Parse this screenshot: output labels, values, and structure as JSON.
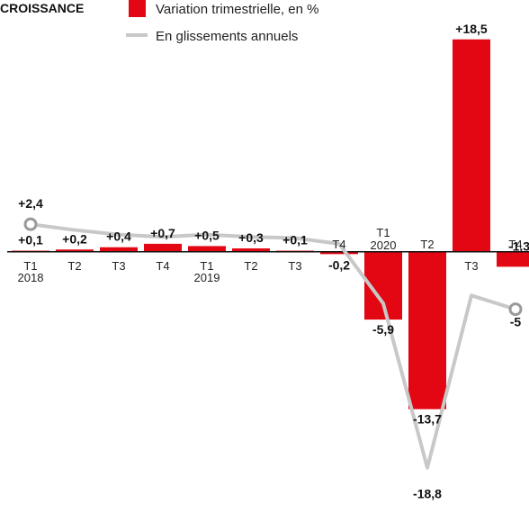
{
  "chart_data": {
    "type": "bar",
    "title": "CROISSANCE",
    "legend_position": "top",
    "series": [
      {
        "name": "Variation trimestrielle, en %",
        "type": "bar",
        "color": "#e30613",
        "values": [
          0.1,
          0.2,
          0.4,
          0.7,
          0.5,
          0.3,
          0.1,
          -0.2,
          -5.9,
          -13.7,
          18.5,
          -1.3
        ],
        "labels": [
          "+0,1",
          "+0,2",
          "+0,4",
          "+0,7",
          "+0,5",
          "+0,3",
          "+0,1",
          "-0,2",
          "-5,9",
          "-13,7",
          "+18,5",
          "-1,3"
        ]
      },
      {
        "name": "En glissements annuels",
        "type": "line",
        "color": "#c8c8c8",
        "values": [
          2.4,
          1.9,
          1.5,
          1.3,
          1.5,
          1.3,
          1.2,
          0.7,
          -4.5,
          -18.8,
          -3.8,
          -5
        ],
        "labels": [
          "+2,4",
          "",
          "",
          "",
          "",
          "",
          "",
          "",
          "",
          "-18,8",
          "",
          "-5"
        ]
      }
    ],
    "categories": [
      {
        "quarter": "T1",
        "year": "2018"
      },
      {
        "quarter": "T2",
        "year": ""
      },
      {
        "quarter": "T3",
        "year": ""
      },
      {
        "quarter": "T4",
        "year": ""
      },
      {
        "quarter": "T1",
        "year": "2019"
      },
      {
        "quarter": "T2",
        "year": ""
      },
      {
        "quarter": "T3",
        "year": ""
      },
      {
        "quarter": "T4",
        "year": ""
      },
      {
        "quarter": "T1",
        "year": "2020"
      },
      {
        "quarter": "T2",
        "year": ""
      },
      {
        "quarter": "T3",
        "year": ""
      },
      {
        "quarter": "T4",
        "year": ""
      }
    ],
    "ylim": [
      -20,
      19.5
    ],
    "grid": false
  }
}
